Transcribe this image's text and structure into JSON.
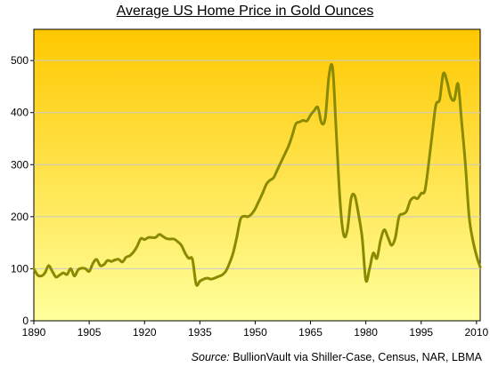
{
  "chart_data": {
    "type": "line",
    "title": "Average US Home Price in Gold Ounces",
    "source_prefix": "Source:",
    "source_text": "BullionVault via Shiller-Case,  Census,  NAR,  LBMA",
    "xlim": [
      1890,
      2011
    ],
    "ylim": [
      0,
      560
    ],
    "x_ticks": [
      1890,
      1905,
      1920,
      1935,
      1950,
      1965,
      1980,
      1995,
      2010
    ],
    "y_ticks": [
      0,
      100,
      200,
      300,
      400,
      500
    ],
    "grid": "horizontal",
    "series": [
      {
        "color": "#8a8a00",
        "points": [
          [
            1890,
            100
          ],
          [
            1891,
            88
          ],
          [
            1892,
            86
          ],
          [
            1893,
            92
          ],
          [
            1894,
            106
          ],
          [
            1895,
            95
          ],
          [
            1896,
            84
          ],
          [
            1897,
            88
          ],
          [
            1898,
            92
          ],
          [
            1899,
            89
          ],
          [
            1900,
            100
          ],
          [
            1901,
            86
          ],
          [
            1902,
            98
          ],
          [
            1903,
            101
          ],
          [
            1904,
            100
          ],
          [
            1905,
            95
          ],
          [
            1906,
            110
          ],
          [
            1907,
            118
          ],
          [
            1908,
            106
          ],
          [
            1909,
            108
          ],
          [
            1910,
            116
          ],
          [
            1911,
            114
          ],
          [
            1912,
            117
          ],
          [
            1913,
            118
          ],
          [
            1914,
            113
          ],
          [
            1915,
            122
          ],
          [
            1916,
            125
          ],
          [
            1917,
            132
          ],
          [
            1918,
            143
          ],
          [
            1919,
            158
          ],
          [
            1920,
            156
          ],
          [
            1921,
            160
          ],
          [
            1922,
            160
          ],
          [
            1923,
            160
          ],
          [
            1924,
            166
          ],
          [
            1925,
            162
          ],
          [
            1926,
            158
          ],
          [
            1927,
            157
          ],
          [
            1928,
            157
          ],
          [
            1929,
            152
          ],
          [
            1930,
            145
          ],
          [
            1931,
            130
          ],
          [
            1932,
            120
          ],
          [
            1933,
            118
          ],
          [
            1934,
            70
          ],
          [
            1935,
            76
          ],
          [
            1936,
            80
          ],
          [
            1937,
            82
          ],
          [
            1938,
            80
          ],
          [
            1939,
            82
          ],
          [
            1940,
            85
          ],
          [
            1941,
            88
          ],
          [
            1942,
            95
          ],
          [
            1943,
            110
          ],
          [
            1944,
            130
          ],
          [
            1945,
            160
          ],
          [
            1946,
            195
          ],
          [
            1947,
            201
          ],
          [
            1948,
            200
          ],
          [
            1949,
            205
          ],
          [
            1950,
            215
          ],
          [
            1951,
            230
          ],
          [
            1952,
            245
          ],
          [
            1953,
            262
          ],
          [
            1954,
            270
          ],
          [
            1955,
            275
          ],
          [
            1956,
            290
          ],
          [
            1957,
            305
          ],
          [
            1958,
            320
          ],
          [
            1959,
            335
          ],
          [
            1960,
            355
          ],
          [
            1961,
            378
          ],
          [
            1962,
            382
          ],
          [
            1963,
            385
          ],
          [
            1964,
            384
          ],
          [
            1965,
            395
          ],
          [
            1966,
            404
          ],
          [
            1967,
            410
          ],
          [
            1968,
            380
          ],
          [
            1969,
            390
          ],
          [
            1970,
            470
          ],
          [
            1971,
            485
          ],
          [
            1972,
            360
          ],
          [
            1973,
            230
          ],
          [
            1974,
            165
          ],
          [
            1975,
            175
          ],
          [
            1976,
            235
          ],
          [
            1977,
            240
          ],
          [
            1978,
            205
          ],
          [
            1979,
            160
          ],
          [
            1980,
            78
          ],
          [
            1981,
            100
          ],
          [
            1982,
            130
          ],
          [
            1983,
            120
          ],
          [
            1984,
            155
          ],
          [
            1985,
            175
          ],
          [
            1986,
            160
          ],
          [
            1987,
            145
          ],
          [
            1988,
            160
          ],
          [
            1989,
            200
          ],
          [
            1990,
            205
          ],
          [
            1991,
            210
          ],
          [
            1992,
            230
          ],
          [
            1993,
            237
          ],
          [
            1994,
            235
          ],
          [
            1995,
            245
          ],
          [
            1996,
            250
          ],
          [
            1997,
            300
          ],
          [
            1998,
            360
          ],
          [
            1999,
            415
          ],
          [
            2000,
            425
          ],
          [
            2001,
            475
          ],
          [
            2002,
            460
          ],
          [
            2003,
            430
          ],
          [
            2004,
            425
          ],
          [
            2005,
            455
          ],
          [
            2006,
            380
          ],
          [
            2007,
            300
          ],
          [
            2008,
            200
          ],
          [
            2009,
            155
          ],
          [
            2010,
            125
          ],
          [
            2011,
            103
          ]
        ]
      }
    ]
  }
}
